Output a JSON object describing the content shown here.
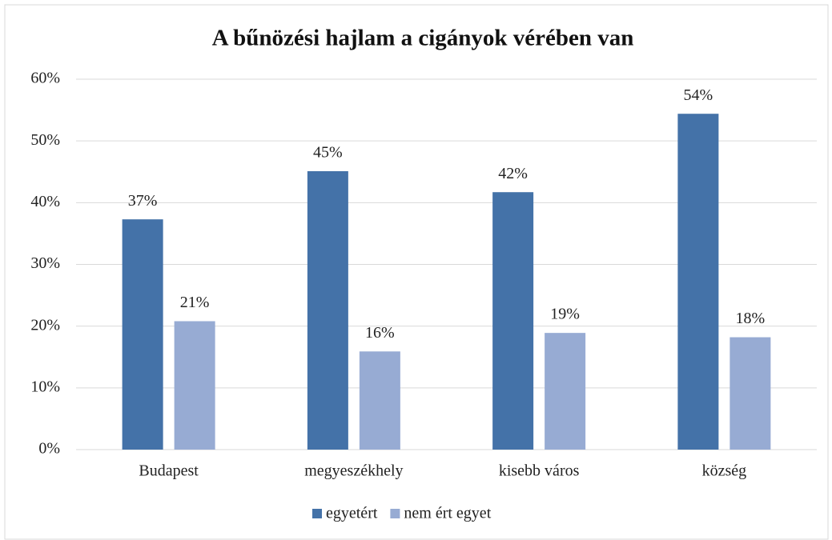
{
  "chart_data": {
    "type": "bar",
    "title": "A bűnözési hajlam a cigányok vérében van",
    "categories": [
      "Budapest",
      "megyeszékhely",
      "kisebb város",
      "község"
    ],
    "series": [
      {
        "name": "egyetért",
        "color": "#4472a8",
        "values": [
          37.3,
          45.1,
          41.7,
          54.4
        ],
        "value_labels": [
          "37%",
          "45%",
          "42%",
          "54%"
        ]
      },
      {
        "name": "nem ért egyet",
        "color": "#97abd3",
        "values": [
          20.8,
          15.9,
          18.9,
          18.2
        ],
        "value_labels": [
          "21%",
          "16%",
          "19%",
          "18%"
        ]
      }
    ],
    "ylim": [
      0,
      60
    ],
    "yticks": [
      {
        "value": 0,
        "label": "0%"
      },
      {
        "value": 10,
        "label": "10%"
      },
      {
        "value": 20,
        "label": "20%"
      },
      {
        "value": 30,
        "label": "30%"
      },
      {
        "value": 40,
        "label": "40%"
      },
      {
        "value": 50,
        "label": "50%"
      },
      {
        "value": 60,
        "label": "60%"
      }
    ],
    "grid": true,
    "legend": "bottom"
  }
}
